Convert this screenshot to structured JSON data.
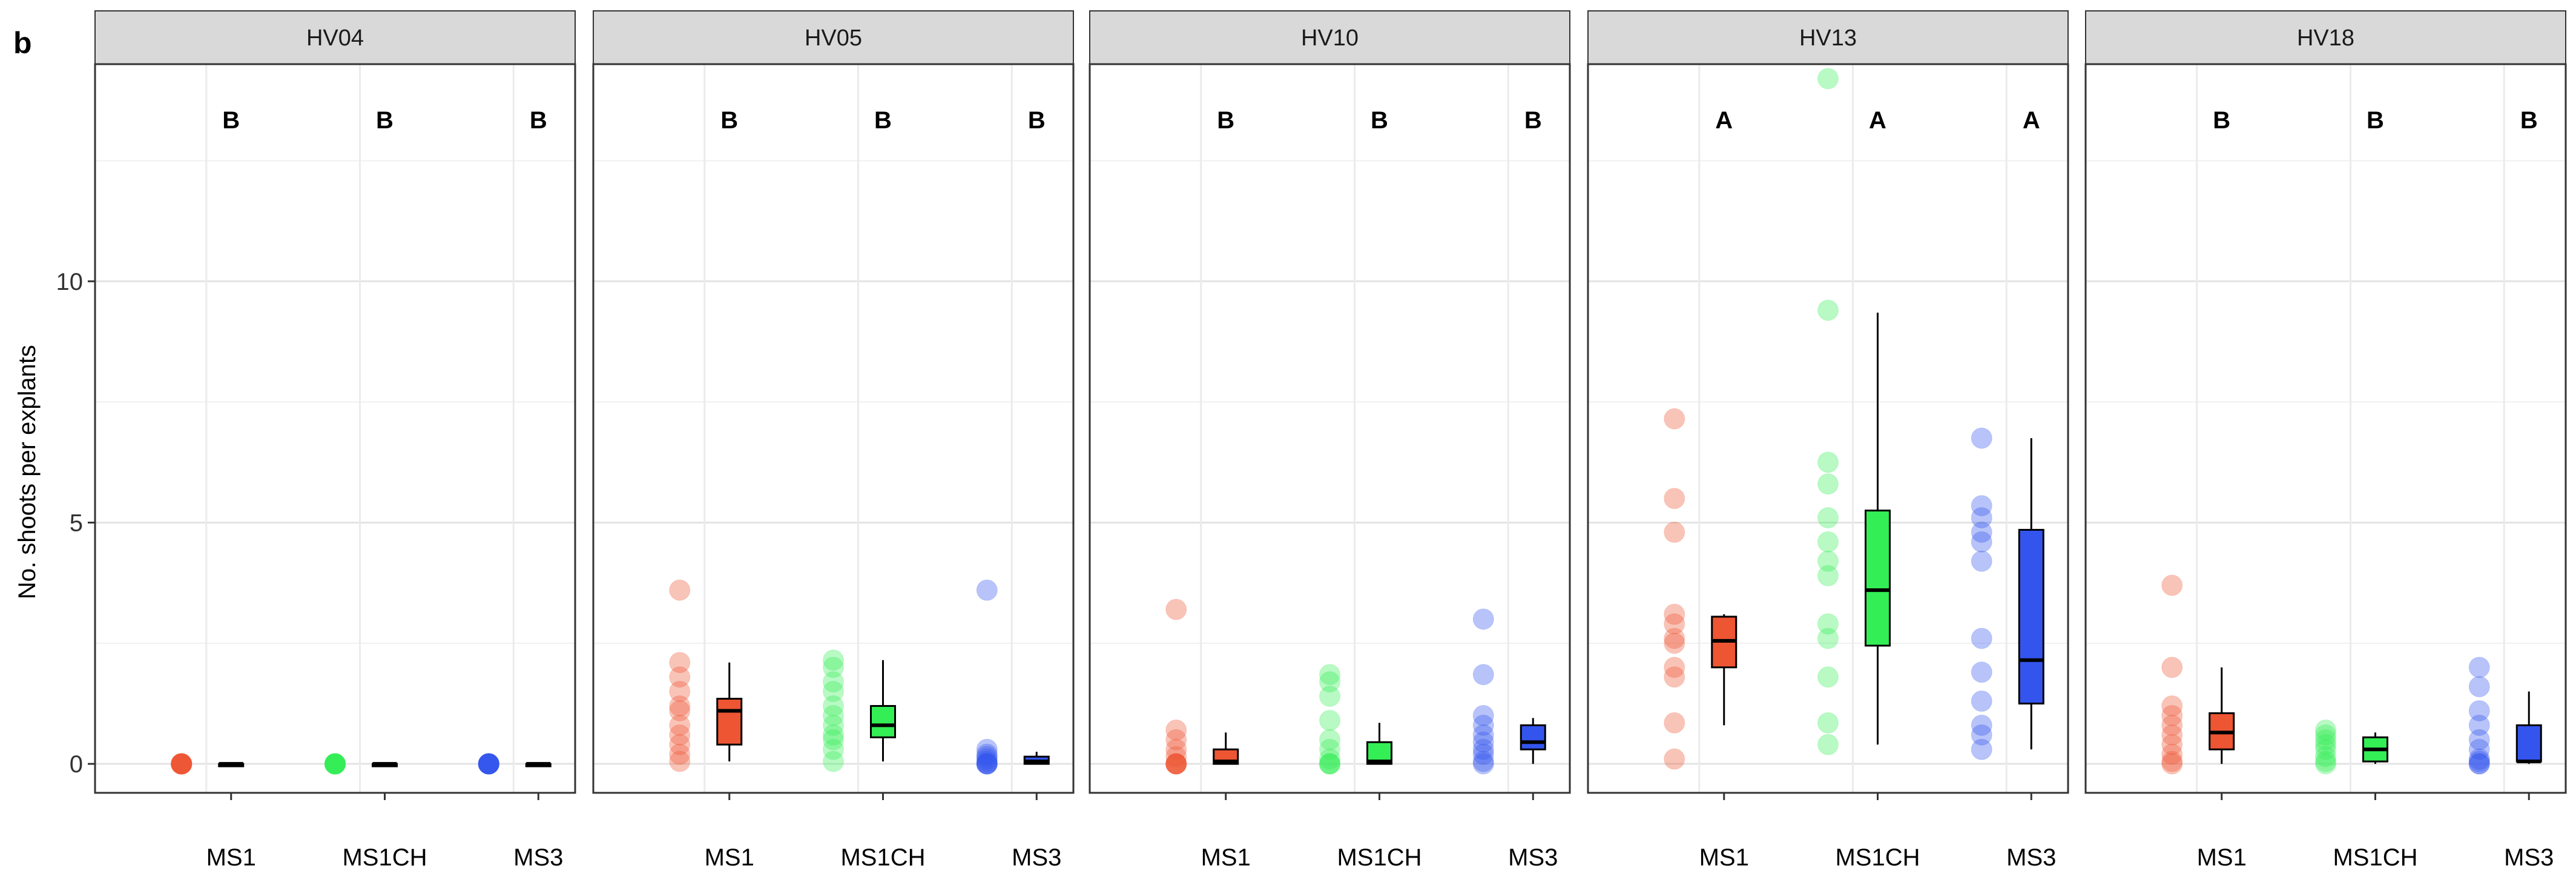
{
  "chart_data": {
    "type": "boxplot",
    "panel_label": "b",
    "ylabel": "No. shoots per explants",
    "xlabel": "",
    "ylim": [
      -0.6,
      14.5
    ],
    "yticks": [
      0,
      5,
      10
    ],
    "ytick_labels": [
      "0",
      "5",
      "10"
    ],
    "grid": true,
    "categories": [
      "MS1",
      "MS1CH",
      "MS3"
    ],
    "colors": {
      "MS1": "#EE5533",
      "MS1CH": "#33EE55",
      "MS3": "#3355EE"
    },
    "panels": [
      {
        "name": "HV04",
        "groups": [
          {
            "category": "MS1",
            "letter": "B",
            "points": [
              0,
              0,
              0,
              0,
              0,
              0,
              0,
              0,
              0,
              0
            ],
            "box": {
              "min": 0,
              "q1": 0,
              "median": 0,
              "q3": 0,
              "max": 0
            }
          },
          {
            "category": "MS1CH",
            "letter": "B",
            "points": [
              0,
              0,
              0,
              0,
              0,
              0,
              0,
              0,
              0,
              0
            ],
            "box": {
              "min": 0,
              "q1": 0,
              "median": 0,
              "q3": 0,
              "max": 0
            }
          },
          {
            "category": "MS3",
            "letter": "B",
            "points": [
              0,
              0,
              0,
              0,
              0,
              0,
              0,
              0,
              0,
              0
            ],
            "box": {
              "min": 0,
              "q1": 0,
              "median": 0,
              "q3": 0,
              "max": 0
            }
          }
        ]
      },
      {
        "name": "HV05",
        "groups": [
          {
            "category": "MS1",
            "letter": "B",
            "points": [
              3.6,
              2.1,
              1.8,
              1.5,
              1.2,
              1.1,
              0.8,
              0.6,
              0.4,
              0.2,
              0.05
            ],
            "box": {
              "min": 0.05,
              "q1": 0.4,
              "median": 1.1,
              "q3": 1.35,
              "max": 2.1
            }
          },
          {
            "category": "MS1CH",
            "letter": "B",
            "points": [
              2.15,
              2.0,
              1.7,
              1.5,
              1.2,
              1.0,
              0.8,
              0.6,
              0.5,
              0.3,
              0.05
            ],
            "box": {
              "min": 0.05,
              "q1": 0.55,
              "median": 0.8,
              "q3": 1.2,
              "max": 2.15
            }
          },
          {
            "category": "MS3",
            "letter": "B",
            "points": [
              3.6,
              0.3,
              0.2,
              0.15,
              0.1,
              0.05,
              0,
              0,
              0,
              0
            ],
            "box": {
              "min": 0,
              "q1": 0,
              "median": 0.05,
              "q3": 0.15,
              "max": 0.25
            }
          }
        ]
      },
      {
        "name": "HV10",
        "groups": [
          {
            "category": "MS1",
            "letter": "B",
            "points": [
              3.2,
              0.7,
              0.5,
              0.3,
              0.15,
              0,
              0,
              0,
              0,
              0
            ],
            "box": {
              "min": 0,
              "q1": 0,
              "median": 0.05,
              "q3": 0.3,
              "max": 0.65
            }
          },
          {
            "category": "MS1CH",
            "letter": "B",
            "points": [
              1.85,
              1.7,
              1.4,
              0.9,
              0.5,
              0.3,
              0.1,
              0,
              0,
              0
            ],
            "box": {
              "min": 0,
              "q1": 0,
              "median": 0.05,
              "q3": 0.45,
              "max": 0.85
            }
          },
          {
            "category": "MS3",
            "letter": "B",
            "points": [
              3.0,
              1.85,
              1.0,
              0.8,
              0.6,
              0.45,
              0.3,
              0.2,
              0.05,
              0
            ],
            "box": {
              "min": 0,
              "q1": 0.3,
              "median": 0.45,
              "q3": 0.8,
              "max": 0.95
            }
          }
        ]
      },
      {
        "name": "HV13",
        "groups": [
          {
            "category": "MS1",
            "letter": "A",
            "points": [
              7.15,
              5.5,
              4.8,
              3.1,
              2.9,
              2.6,
              2.5,
              2.0,
              1.8,
              0.85,
              0.1
            ],
            "box": {
              "min": 0.8,
              "q1": 2.0,
              "median": 2.55,
              "q3": 3.05,
              "max": 3.1
            }
          },
          {
            "category": "MS1CH",
            "letter": "A",
            "points": [
              14.2,
              9.4,
              6.25,
              5.8,
              5.1,
              4.6,
              4.2,
              3.9,
              2.9,
              2.6,
              1.8,
              0.85,
              0.4
            ],
            "box": {
              "min": 0.4,
              "q1": 2.45,
              "median": 3.6,
              "q3": 5.25,
              "max": 9.35
            }
          },
          {
            "category": "MS3",
            "letter": "A",
            "points": [
              6.75,
              5.35,
              5.1,
              4.8,
              4.6,
              4.2,
              2.6,
              1.9,
              1.3,
              0.8,
              0.6,
              0.3
            ],
            "box": {
              "min": 0.3,
              "q1": 1.25,
              "median": 2.15,
              "q3": 4.85,
              "max": 6.75
            }
          }
        ]
      },
      {
        "name": "HV18",
        "groups": [
          {
            "category": "MS1",
            "letter": "B",
            "points": [
              3.7,
              2.0,
              1.2,
              1.0,
              0.8,
              0.6,
              0.4,
              0.2,
              0.05,
              0
            ],
            "box": {
              "min": 0,
              "q1": 0.3,
              "median": 0.65,
              "q3": 1.05,
              "max": 2.0
            }
          },
          {
            "category": "MS1CH",
            "letter": "B",
            "points": [
              0.7,
              0.6,
              0.5,
              0.4,
              0.3,
              0.15,
              0.05,
              0
            ],
            "box": {
              "min": 0,
              "q1": 0.05,
              "median": 0.3,
              "q3": 0.55,
              "max": 0.65
            }
          },
          {
            "category": "MS3",
            "letter": "B",
            "points": [
              2.0,
              1.6,
              1.1,
              0.8,
              0.5,
              0.3,
              0.1,
              0.05,
              0,
              0
            ],
            "box": {
              "min": 0,
              "q1": 0.05,
              "median": 0.05,
              "q3": 0.8,
              "max": 1.5
            }
          }
        ]
      }
    ]
  }
}
